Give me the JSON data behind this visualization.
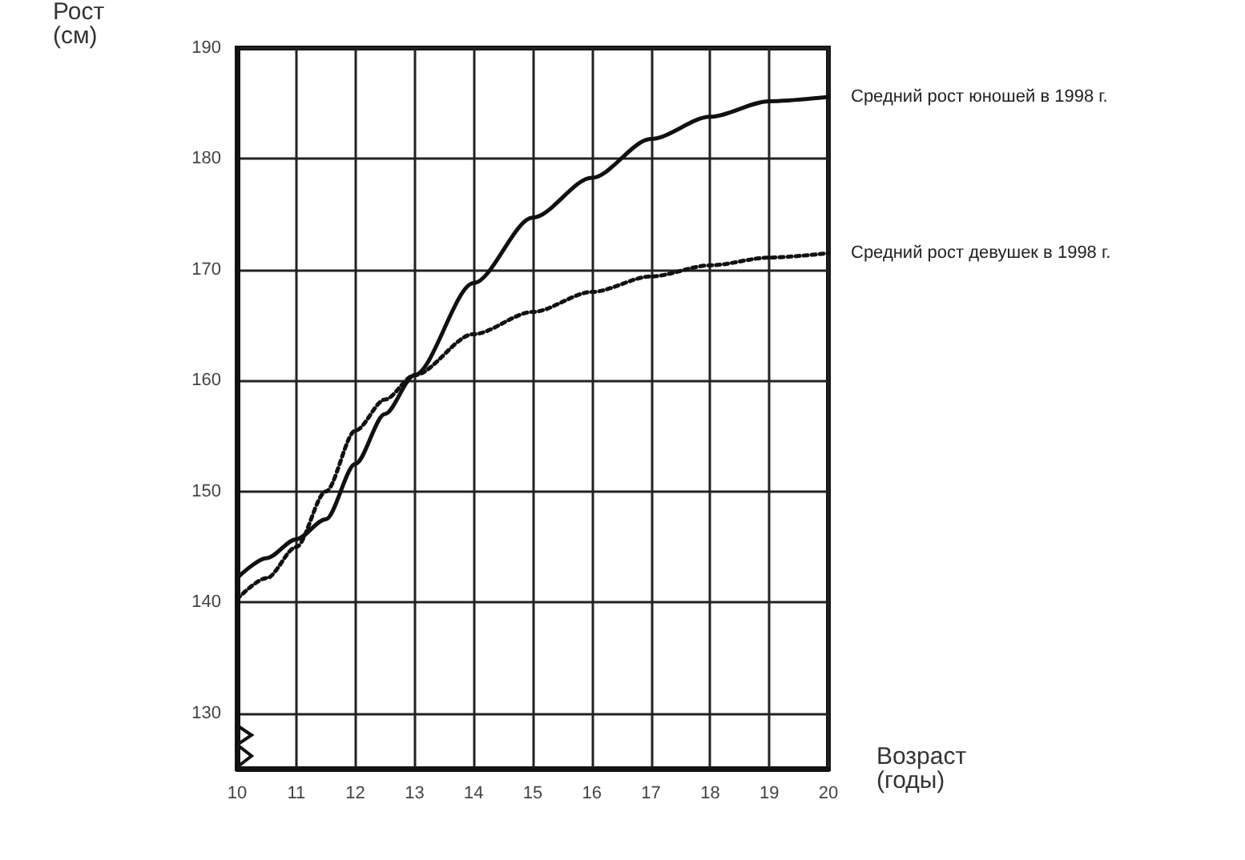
{
  "chart_data": {
    "type": "line",
    "xlabel": "Возраст\n(годы)",
    "ylabel": "Рост\n(см)",
    "x": [
      10,
      10.5,
      11,
      11.5,
      12,
      12.5,
      13,
      14,
      15,
      16,
      17,
      18,
      19,
      20
    ],
    "series": [
      {
        "name": "Средний рост юношей в 1998 г.",
        "color": "#111111",
        "line_style": "solid",
        "values": [
          142.2,
          144,
          145.7,
          147.5,
          152.5,
          157,
          160.5,
          168.8,
          174.7,
          178.3,
          181.8,
          183.8,
          185.2,
          185.6
        ]
      },
      {
        "name": "Средний рост девушек в 1998 г.",
        "color": "#111111",
        "line_style": "dotted",
        "values": [
          140.3,
          142.2,
          145,
          150,
          155.5,
          158.3,
          160.5,
          164.2,
          166.2,
          168,
          169.4,
          170.4,
          171.1,
          171.5
        ]
      }
    ],
    "xlim": [
      10,
      20
    ],
    "ylim": [
      125,
      190
    ],
    "xticks": [
      10,
      11,
      12,
      13,
      14,
      15,
      16,
      17,
      18,
      19,
      20
    ],
    "yticks": [
      130,
      140,
      150,
      160,
      170,
      180,
      190
    ],
    "grid": true,
    "marker": "none",
    "legend": false
  }
}
